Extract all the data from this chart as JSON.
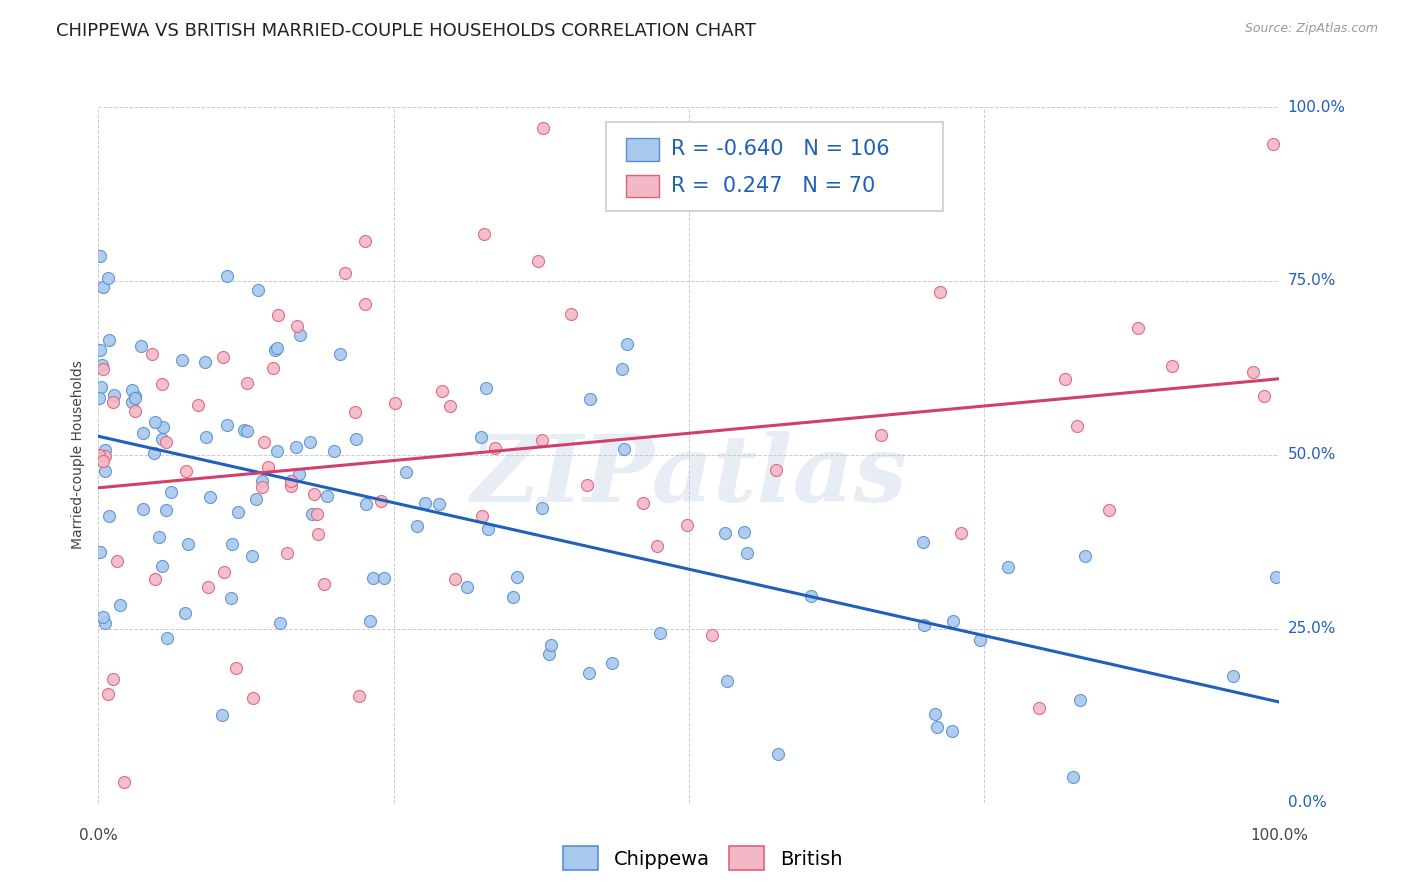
{
  "title": "CHIPPEWA VS BRITISH MARRIED-COUPLE HOUSEHOLDS CORRELATION CHART",
  "source": "Source: ZipAtlas.com",
  "ylabel": "Married-couple Households",
  "ytick_labels": [
    "",
    "25.0%",
    "50.0%",
    "75.0%",
    "100.0%"
  ],
  "ytick_vals": [
    0.0,
    0.25,
    0.5,
    0.75,
    1.0
  ],
  "legend_labels": [
    "Chippewa",
    "British"
  ],
  "chippewa_fill": "#A8C8EE",
  "british_fill": "#F2B8C6",
  "chippewa_edge": "#5590D0",
  "british_edge": "#E0607A",
  "chippewa_line": "#2060BB",
  "british_line": "#D0406A",
  "R_chippewa": -0.64,
  "N_chippewa": 106,
  "R_british": 0.247,
  "N_british": 70,
  "background_color": "#ffffff",
  "grid_color": "#cccccc",
  "watermark": "ZIPatlas",
  "title_fontsize": 13,
  "axis_label_fontsize": 10,
  "tick_fontsize": 11,
  "legend_fontsize": 14,
  "corr_fontsize": 15
}
